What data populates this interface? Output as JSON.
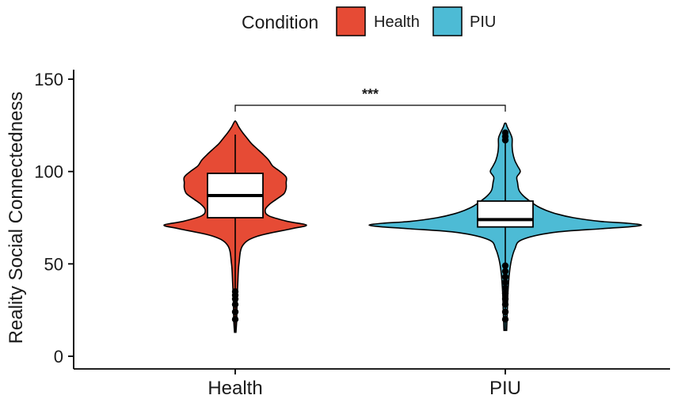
{
  "chart_data": {
    "type": "violin",
    "ylabel": "Reality Social Connectedness",
    "xlabel": "",
    "ylim": [
      0,
      155
    ],
    "yticks": [
      0,
      50,
      100,
      150
    ],
    "categories": [
      "Health",
      "PIU"
    ],
    "legend": {
      "title": "Condition",
      "position": "top",
      "entries": [
        {
          "label": "Health",
          "color": "#E64B35"
        },
        {
          "label": "PIU",
          "color": "#4DBBD5"
        }
      ]
    },
    "series": [
      {
        "name": "Health",
        "color": "#E64B35",
        "box": {
          "min": 20,
          "q1": 75,
          "median": 87,
          "q3": 99,
          "max": 120
        },
        "violin_range": [
          13,
          127
        ],
        "density": [
          [
            13,
            0.01
          ],
          [
            20,
            0.02
          ],
          [
            30,
            0.025
          ],
          [
            40,
            0.035
          ],
          [
            50,
            0.05
          ],
          [
            60,
            0.1
          ],
          [
            65,
            0.3
          ],
          [
            69,
            0.75
          ],
          [
            71,
            0.95
          ],
          [
            73,
            0.7
          ],
          [
            76,
            0.45
          ],
          [
            79,
            0.4
          ],
          [
            82,
            0.45
          ],
          [
            85,
            0.55
          ],
          [
            88,
            0.65
          ],
          [
            91,
            0.68
          ],
          [
            94,
            0.68
          ],
          [
            97,
            0.68
          ],
          [
            100,
            0.6
          ],
          [
            103,
            0.5
          ],
          [
            106,
            0.45
          ],
          [
            109,
            0.38
          ],
          [
            112,
            0.3
          ],
          [
            115,
            0.22
          ],
          [
            118,
            0.16
          ],
          [
            121,
            0.1
          ],
          [
            124,
            0.05
          ],
          [
            127,
            0.01
          ]
        ],
        "outliers": [
          20,
          24,
          28,
          31,
          33,
          35
        ]
      },
      {
        "name": "PIU",
        "color": "#4DBBD5",
        "box": {
          "min": 20,
          "q1": 70,
          "median": 74,
          "q3": 84,
          "max": 120
        },
        "violin_range": [
          14,
          126
        ],
        "density": [
          [
            14,
            0.01
          ],
          [
            25,
            0.015
          ],
          [
            35,
            0.02
          ],
          [
            45,
            0.03
          ],
          [
            52,
            0.045
          ],
          [
            58,
            0.07
          ],
          [
            63,
            0.12
          ],
          [
            67,
            0.35
          ],
          [
            69,
            0.7
          ],
          [
            70,
            0.9
          ],
          [
            71,
            1.0
          ],
          [
            72,
            0.9
          ],
          [
            73,
            0.7
          ],
          [
            75,
            0.5
          ],
          [
            77,
            0.38
          ],
          [
            79,
            0.3
          ],
          [
            81,
            0.24
          ],
          [
            84,
            0.18
          ],
          [
            87,
            0.13
          ],
          [
            90,
            0.1
          ],
          [
            94,
            0.09
          ],
          [
            97,
            0.085
          ],
          [
            100,
            0.11
          ],
          [
            103,
            0.09
          ],
          [
            106,
            0.07
          ],
          [
            110,
            0.055
          ],
          [
            114,
            0.05
          ],
          [
            118,
            0.05
          ],
          [
            121,
            0.035
          ],
          [
            124,
            0.015
          ],
          [
            126,
            0.005
          ]
        ],
        "outliers": [
          20,
          24,
          28,
          31,
          34,
          37,
          40,
          43,
          46,
          49,
          117,
          119,
          121
        ]
      }
    ],
    "annotations": [
      {
        "type": "significance",
        "text": "***",
        "between": [
          "Health",
          "PIU"
        ]
      }
    ]
  }
}
